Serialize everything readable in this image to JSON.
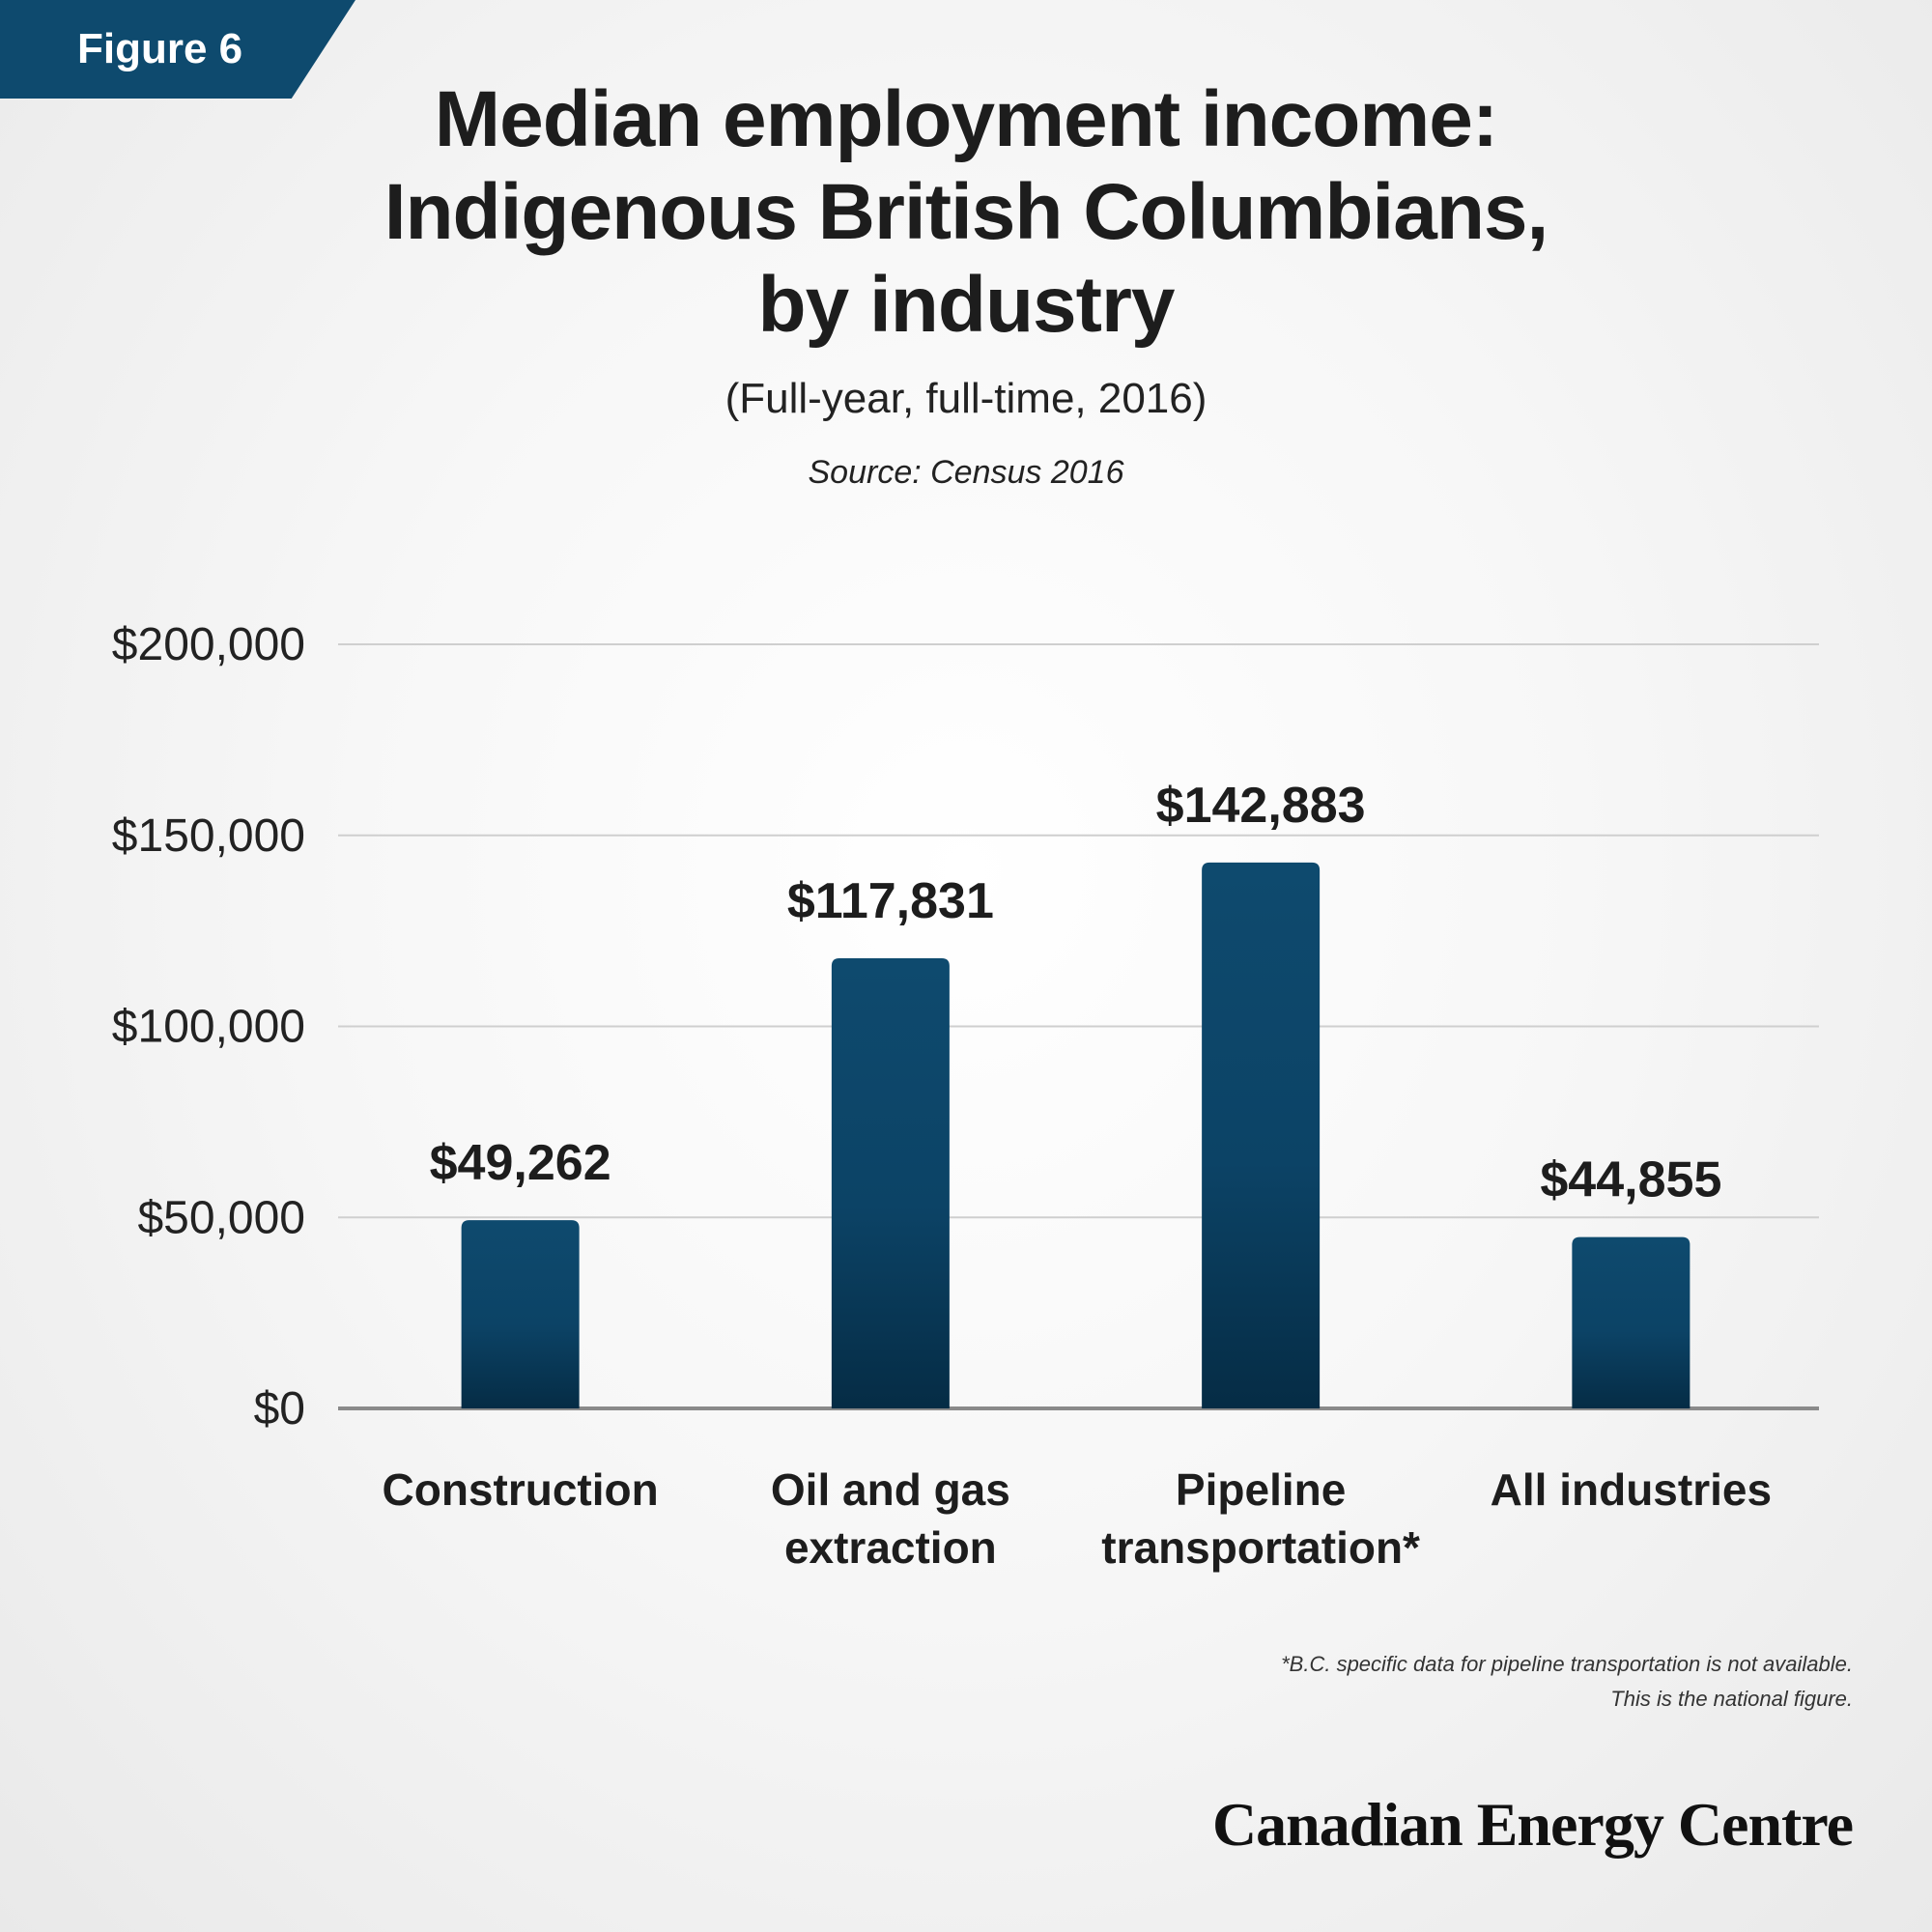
{
  "badge": "Figure 6",
  "title_lines": [
    "Median employment income:",
    "Indigenous British Columbians,",
    "by industry"
  ],
  "subtitle": "(Full-year, full-time, 2016)",
  "source": "Source: Census 2016",
  "footnote_lines": [
    "*B.C. specific data for pipeline transportation is not available.",
    "This is the national figure."
  ],
  "brand": "Canadian Energy Centre",
  "colors": {
    "bar": "#0e4a6e",
    "bar_dark": "#052c45",
    "grid": "#cfcfcf",
    "axis": "#8a8a8a",
    "badge": "#0e4a6e"
  },
  "chart_data": {
    "type": "bar",
    "categories": [
      "Construction",
      "Oil and gas extraction",
      "Pipeline transportation*",
      "All industries"
    ],
    "category_lines": [
      [
        "Construction"
      ],
      [
        "Oil and gas",
        "extraction"
      ],
      [
        "Pipeline",
        "transportation*"
      ],
      [
        "All industries"
      ]
    ],
    "values": [
      49262,
      117831,
      142883,
      44855
    ],
    "value_labels": [
      "$49,262",
      "$117,831",
      "$142,883",
      "$44,855"
    ],
    "yticks": [
      0,
      50000,
      100000,
      150000,
      200000
    ],
    "ytick_labels": [
      "$0",
      "$50,000",
      "$100,000",
      "$150,000",
      "$200,000"
    ],
    "ylim": [
      0,
      200000
    ],
    "grid": true
  }
}
